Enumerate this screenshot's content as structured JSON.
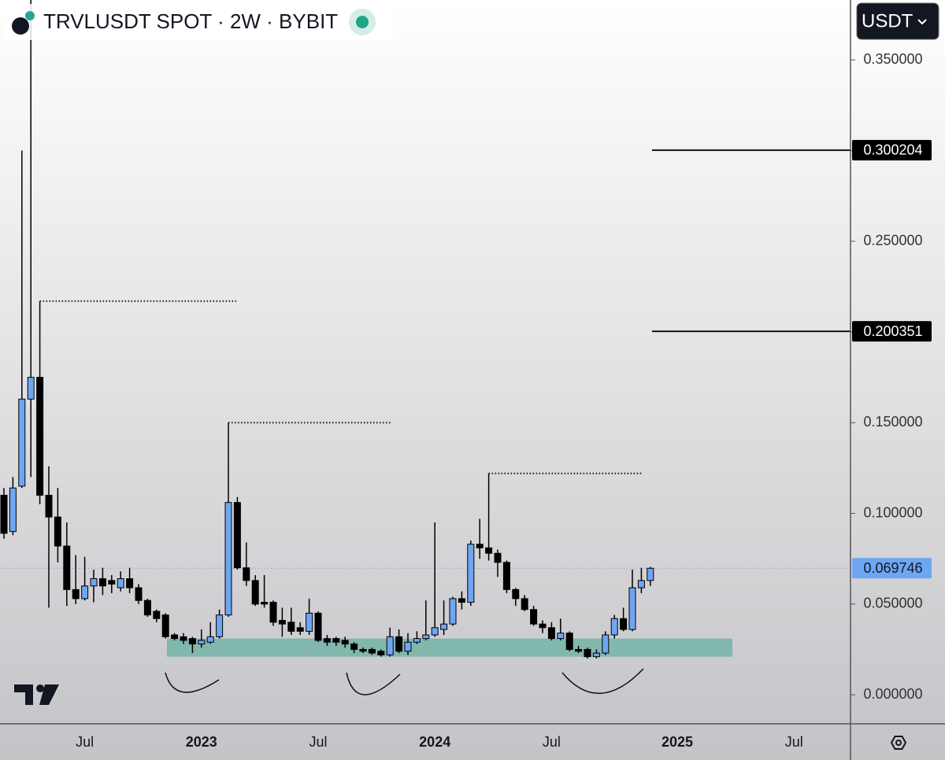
{
  "chart_data": {
    "type": "candlestick",
    "title": "TRVLUSDT SPOT · 2W · BYBIT",
    "currency": "USDT",
    "categories": [
      null,
      null,
      null,
      null,
      null,
      null,
      null,
      null,
      null,
      "Jul",
      null,
      null,
      null,
      null,
      null,
      null,
      null,
      null,
      null,
      null,
      null,
      null,
      "2023",
      null,
      null,
      null,
      null,
      null,
      null,
      null,
      null,
      null,
      null,
      null,
      null,
      "Jul",
      null,
      null,
      null,
      null,
      null,
      null,
      null,
      null,
      null,
      null,
      null,
      null,
      "2024",
      null,
      null,
      null,
      null,
      null,
      null,
      null,
      null,
      null,
      null,
      null,
      null,
      "Jul",
      null,
      null,
      null,
      null,
      null,
      null,
      null,
      null,
      null,
      null,
      null,
      null,
      null,
      "2025",
      null,
      null,
      null,
      null,
      null,
      null,
      null,
      null,
      null,
      null,
      null,
      null,
      "Jul",
      null,
      null,
      null,
      null,
      null,
      null
    ],
    "open": [
      0.11,
      0.09,
      0.115,
      0.163,
      0.175,
      0.11,
      0.098,
      0.082,
      0.058,
      0.053,
      0.06,
      0.064,
      0.063,
      0.059,
      0.064,
      0.059,
      0.052,
      0.046,
      0.044,
      0.033,
      0.032,
      0.031,
      0.028,
      0.029,
      0.032,
      0.044,
      0.106,
      0.07,
      0.063,
      0.051,
      0.051,
      0.041,
      0.04,
      0.037,
      0.035,
      0.045,
      0.031,
      0.031,
      0.03,
      0.028,
      0.025,
      0.025,
      0.024,
      0.022,
      0.032,
      0.024,
      0.029,
      0.031,
      0.033,
      0.036,
      0.039,
      0.053,
      0.051,
      0.083,
      0.081,
      0.078,
      0.073,
      0.058,
      0.053,
      0.047,
      0.039,
      0.037,
      0.031,
      0.034,
      0.025,
      0.025,
      0.021,
      0.023,
      0.033,
      0.042,
      0.036,
      0.059,
      0.063,
      null,
      null,
      null,
      null,
      null,
      null,
      null,
      null,
      null,
      null,
      null,
      null,
      null,
      null,
      null,
      null,
      null,
      null,
      null,
      null,
      null,
      null
    ],
    "high": [
      0.114,
      0.12,
      0.3,
      0.4,
      0.217,
      0.126,
      0.114,
      0.095,
      0.077,
      0.076,
      0.069,
      0.07,
      0.066,
      0.068,
      0.07,
      0.061,
      0.053,
      0.047,
      0.045,
      0.034,
      0.034,
      0.032,
      0.036,
      0.04,
      0.047,
      0.15,
      0.109,
      0.084,
      0.066,
      0.066,
      0.052,
      0.048,
      0.048,
      0.04,
      0.053,
      0.046,
      0.033,
      0.032,
      0.032,
      0.029,
      0.026,
      0.026,
      0.025,
      0.037,
      0.036,
      0.034,
      0.035,
      0.052,
      0.095,
      0.052,
      0.054,
      0.057,
      0.085,
      0.097,
      0.122,
      0.08,
      0.074,
      0.059,
      0.055,
      0.049,
      0.041,
      0.04,
      0.042,
      0.035,
      0.027,
      0.026,
      0.025,
      0.035,
      0.044,
      0.048,
      0.069,
      0.07,
      0.0705,
      null,
      null,
      null,
      null,
      null,
      null,
      null,
      null,
      null,
      null,
      null,
      null,
      null,
      null,
      null,
      null,
      null,
      null,
      null,
      null,
      null,
      null
    ],
    "low": [
      0.086,
      0.088,
      0.114,
      0.12,
      0.105,
      0.048,
      0.073,
      0.049,
      0.05,
      0.052,
      0.051,
      0.055,
      0.056,
      0.057,
      0.056,
      0.05,
      0.043,
      0.04,
      0.031,
      0.03,
      0.028,
      0.023,
      0.026,
      0.028,
      0.031,
      0.043,
      0.069,
      0.06,
      0.049,
      0.048,
      0.038,
      0.032,
      0.033,
      0.033,
      0.033,
      0.029,
      0.027,
      0.027,
      0.026,
      0.023,
      0.023,
      0.022,
      0.021,
      0.021,
      0.023,
      0.022,
      0.028,
      0.03,
      0.032,
      0.033,
      0.038,
      0.047,
      0.049,
      0.075,
      0.074,
      0.065,
      0.056,
      0.049,
      0.046,
      0.038,
      0.034,
      0.03,
      0.03,
      0.024,
      0.023,
      0.02,
      0.02,
      0.022,
      0.031,
      0.035,
      0.035,
      0.056,
      0.06,
      null,
      null,
      null,
      null,
      null,
      null,
      null,
      null,
      null,
      null,
      null,
      null,
      null,
      null,
      null,
      null,
      null,
      null,
      null,
      null,
      null,
      null
    ],
    "close": [
      0.089,
      0.114,
      0.163,
      0.175,
      0.11,
      0.098,
      0.082,
      0.058,
      0.053,
      0.06,
      0.064,
      0.06,
      0.061,
      0.064,
      0.059,
      0.052,
      0.044,
      0.042,
      0.032,
      0.031,
      0.03,
      0.028,
      0.03,
      0.032,
      0.044,
      0.106,
      0.07,
      0.063,
      0.05,
      0.05,
      0.04,
      0.039,
      0.035,
      0.035,
      0.045,
      0.03,
      0.029,
      0.029,
      0.028,
      0.025,
      0.024,
      0.023,
      0.022,
      0.032,
      0.024,
      0.029,
      0.031,
      0.033,
      0.037,
      0.039,
      0.053,
      0.051,
      0.083,
      0.081,
      0.078,
      0.073,
      0.058,
      0.053,
      0.047,
      0.039,
      0.037,
      0.031,
      0.034,
      0.025,
      0.024,
      0.021,
      0.023,
      0.033,
      0.042,
      0.036,
      0.059,
      0.063,
      0.069746,
      null,
      null,
      null,
      null,
      null,
      null,
      null,
      null,
      null,
      null,
      null,
      null,
      null,
      null,
      null,
      null,
      null,
      null,
      null,
      null,
      null,
      null
    ],
    "up_color": "#6ea6f2",
    "down_color": "#000000",
    "ylim": [
      -0.016,
      0.383
    ],
    "yticks": [
      {
        "value": 0,
        "label": "0.000000"
      },
      {
        "value": 0.05,
        "label": "0.050000"
      },
      {
        "value": 0.1,
        "label": "0.100000"
      },
      {
        "value": 0.15,
        "label": "0.150000"
      },
      {
        "value": 0.2,
        "label": "0.200000"
      },
      {
        "value": 0.25,
        "label": "0.250000"
      },
      {
        "value": 0.3,
        "label": "0.300000"
      },
      {
        "value": 0.35,
        "label": "0.350000"
      }
    ],
    "last_price": 0.069746,
    "price_lines": [
      0.300204,
      0.200351
    ],
    "support_zone": [
      0.021,
      0.031
    ],
    "zone_color": "#7ab5a8"
  }
}
